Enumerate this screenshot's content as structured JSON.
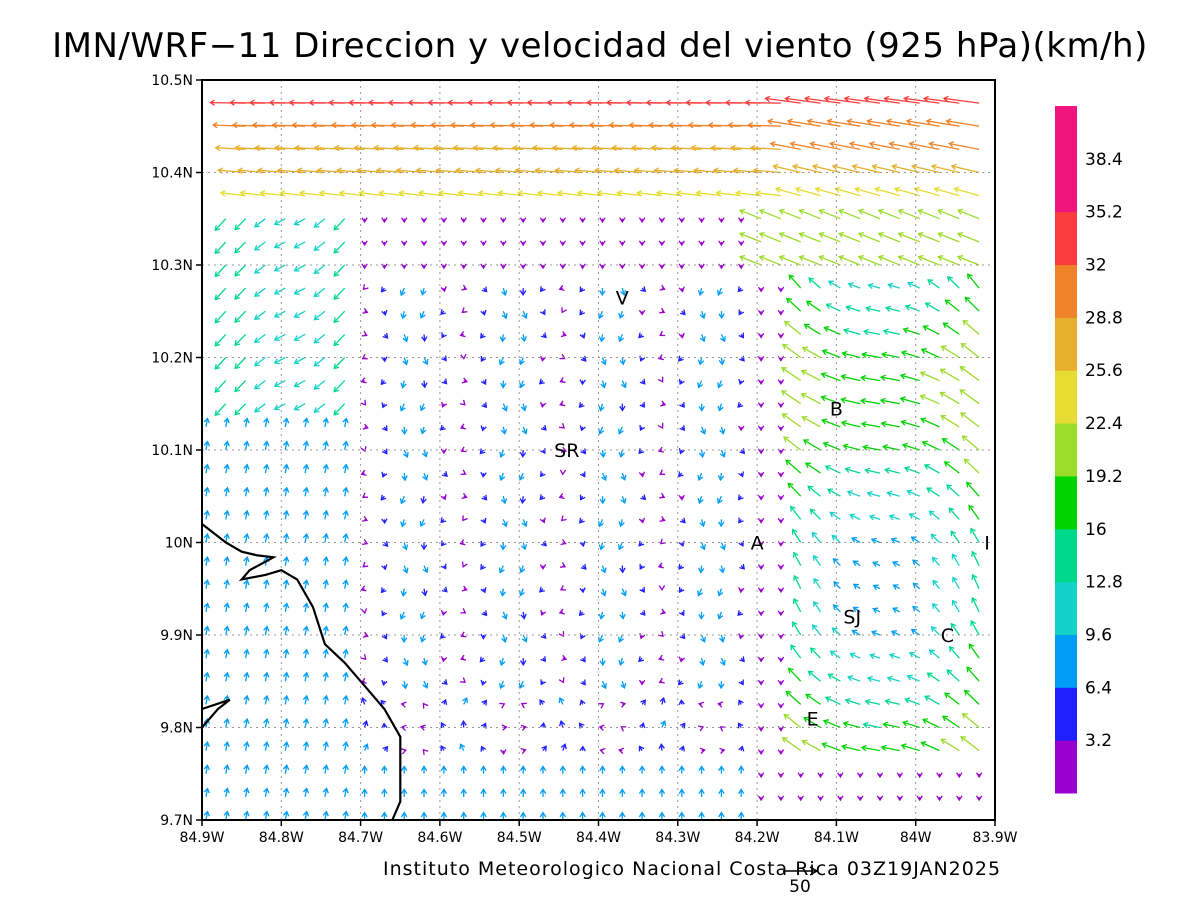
{
  "title": "IMN/WRF−11 Direccion y velocidad del viento (925 hPa)(km/h)",
  "footer": "Instituto Meteorologico Nacional Costa Rica 03Z19JAN2025",
  "reference_vector_label": "50",
  "axes": {
    "lon_range": [
      -84.9,
      -83.9
    ],
    "lat_range": [
      9.7,
      10.5
    ],
    "x_tick_labels": [
      "84.9W",
      "84.8W",
      "84.7W",
      "84.6W",
      "84.5W",
      "84.4W",
      "84.3W",
      "84.2W",
      "84.1W",
      "84W",
      "83.9W"
    ],
    "y_tick_labels": [
      "9.7N",
      "9.8N",
      "9.9N",
      "10N",
      "10.1N",
      "10.2N",
      "10.3N",
      "10.4N",
      "10.5N"
    ],
    "grid": true
  },
  "colorbar": {
    "labels": [
      "3.2",
      "6.4",
      "9.6",
      "12.8",
      "16",
      "19.2",
      "22.4",
      "25.6",
      "28.8",
      "32",
      "35.2",
      "38.4"
    ],
    "colors": [
      "#9a00d0",
      "#1f1fff",
      "#009df5",
      "#14d2c8",
      "#00d98b",
      "#00d400",
      "#9bdc2a",
      "#e6dc32",
      "#e6af2d",
      "#f08228",
      "#fa3c3c",
      "#f0147d"
    ]
  },
  "place_labels": [
    {
      "text": "V",
      "lon": -84.37,
      "lat": 10.265
    },
    {
      "text": "SR",
      "lon": -84.44,
      "lat": 10.1
    },
    {
      "text": "B",
      "lon": -84.1,
      "lat": 10.145
    },
    {
      "text": "A",
      "lon": -84.2,
      "lat": 10.0
    },
    {
      "text": "SJ",
      "lon": -84.08,
      "lat": 9.92
    },
    {
      "text": "C",
      "lon": -83.96,
      "lat": 9.9
    },
    {
      "text": "E",
      "lon": -84.13,
      "lat": 9.81
    },
    {
      "text": "I",
      "lon": -83.91,
      "lat": 10.0
    }
  ],
  "coastline": {
    "segments": [
      [
        [
          -84.9,
          10.02
        ],
        [
          -84.87,
          10.0
        ],
        [
          -84.85,
          9.99
        ],
        [
          -84.83,
          9.986
        ],
        [
          -84.81,
          9.984
        ],
        [
          -84.84,
          9.97
        ],
        [
          -84.85,
          9.96
        ],
        [
          -84.82,
          9.965
        ],
        [
          -84.8,
          9.97
        ],
        [
          -84.78,
          9.96
        ],
        [
          -84.76,
          9.93
        ],
        [
          -84.745,
          9.89
        ],
        [
          -84.72,
          9.87
        ],
        [
          -84.7,
          9.85
        ],
        [
          -84.67,
          9.82
        ],
        [
          -84.65,
          9.79
        ],
        [
          -84.65,
          9.72
        ],
        [
          -84.66,
          9.7
        ]
      ],
      [
        [
          -84.9,
          9.8
        ],
        [
          -84.88,
          9.82
        ],
        [
          -84.865,
          9.83
        ],
        [
          -84.9,
          9.82
        ]
      ]
    ]
  },
  "chart_data": {
    "type": "vector-field",
    "title": "IMN/WRF−11 Direccion y velocidad del viento (925 hPa)(km/h)",
    "units": "km/h",
    "level": "925 hPa",
    "valid_time": "03Z19JAN2025",
    "x_range": [
      -84.9,
      -83.9
    ],
    "y_range": [
      9.7,
      10.5
    ],
    "regimes": [
      {
        "region": "northern band 10.38N–10.5N",
        "direction": "from east",
        "speed_kmh": [
          25,
          36
        ]
      },
      {
        "region": "northwest 10.2N–10.35N, 84.9W–84.7W",
        "direction": "from east/northeast",
        "speed_kmh": [
          20,
          35
        ]
      },
      {
        "region": "central valleys",
        "direction": "variable, light",
        "speed_kmh": [
          2,
          10
        ]
      },
      {
        "region": "east 84.15W–83.9W, 9.8N–10.3N",
        "direction": "from southeast/east",
        "speed_kmh": [
          15,
          30
        ]
      },
      {
        "region": "southwest 9.7N–10.0N",
        "direction": "from south",
        "speed_kmh": [
          6,
          12
        ]
      }
    ]
  }
}
